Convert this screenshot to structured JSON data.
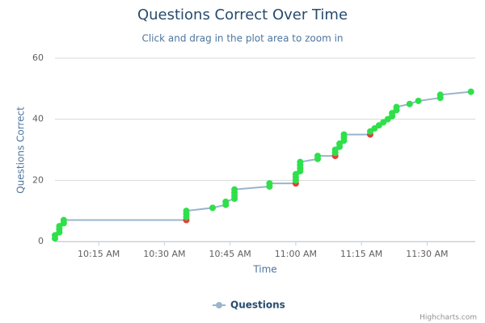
{
  "chart_data": {
    "type": "line",
    "title": "Questions Correct Over Time",
    "subtitle": "Click and drag in the plot area to zoom in",
    "x_label": "Time",
    "y_label": "Questions Correct",
    "x": [
      "10:05 AM",
      "10:05 AM",
      "10:06 AM",
      "10:06 AM",
      "10:06 AM",
      "10:07 AM",
      "10:07 AM",
      "10:35 AM",
      "10:35 AM",
      "10:35 AM",
      "10:35 AM",
      "10:41 AM",
      "10:44 AM",
      "10:44 AM",
      "10:46 AM",
      "10:46 AM",
      "10:46 AM",
      "10:46 AM",
      "10:54 AM",
      "10:54 AM",
      "11:00 AM",
      "11:00 AM",
      "11:00 AM",
      "11:00 AM",
      "11:01 AM",
      "11:01 AM",
      "11:01 AM",
      "11:01 AM",
      "11:05 AM",
      "11:05 AM",
      "11:09 AM",
      "11:09 AM",
      "11:09 AM",
      "11:10 AM",
      "11:10 AM",
      "11:11 AM",
      "11:11 AM",
      "11:11 AM",
      "11:17 AM",
      "11:17 AM",
      "11:18 AM",
      "11:19 AM",
      "11:20 AM",
      "11:21 AM",
      "11:22 AM",
      "11:22 AM",
      "11:23 AM",
      "11:23 AM",
      "11:26 AM",
      "11:28 AM",
      "11:33 AM",
      "11:33 AM",
      "11:40 AM"
    ],
    "series": [
      {
        "name": "Questions",
        "color": "#9ab4cc",
        "values": [
          1,
          2,
          3,
          4,
          5,
          6,
          7,
          7,
          8,
          9,
          10,
          11,
          12,
          13,
          14,
          15,
          16,
          17,
          18,
          19,
          19,
          20,
          21,
          22,
          23,
          24,
          25,
          26,
          27,
          28,
          28,
          29,
          30,
          31,
          32,
          33,
          34,
          35,
          35,
          36,
          37,
          38,
          39,
          40,
          41,
          42,
          43,
          44,
          45,
          46,
          47,
          48,
          49
        ],
        "marker_colors": [
          "#2ee04a",
          "#2ee04a",
          "#2ee04a",
          "#2ee04a",
          "#2ee04a",
          "#2ee04a",
          "#2ee04a",
          "#e0413a",
          "#2ee04a",
          "#2ee04a",
          "#2ee04a",
          "#2ee04a",
          "#2ee04a",
          "#2ee04a",
          "#2ee04a",
          "#2ee04a",
          "#2ee04a",
          "#2ee04a",
          "#2ee04a",
          "#2ee04a",
          "#e0413a",
          "#2ee04a",
          "#2ee04a",
          "#2ee04a",
          "#2ee04a",
          "#2ee04a",
          "#2ee04a",
          "#2ee04a",
          "#2ee04a",
          "#2ee04a",
          "#e0413a",
          "#2ee04a",
          "#2ee04a",
          "#2ee04a",
          "#2ee04a",
          "#2ee04a",
          "#2ee04a",
          "#2ee04a",
          "#e0413a",
          "#2ee04a",
          "#2ee04a",
          "#2ee04a",
          "#2ee04a",
          "#2ee04a",
          "#2ee04a",
          "#2ee04a",
          "#2ee04a",
          "#2ee04a",
          "#2ee04a",
          "#2ee04a",
          "#2ee04a",
          "#2ee04a",
          "#2ee04a"
        ]
      }
    ],
    "xlim": [
      "10:05 AM",
      "11:41 AM"
    ],
    "xticks": [
      "10:15 AM",
      "10:30 AM",
      "10:45 AM",
      "11:00 AM",
      "11:15 AM",
      "11:30 AM"
    ],
    "ylim": [
      0,
      60
    ],
    "yticks": [
      0,
      20,
      40,
      60
    ],
    "grid": true,
    "legend": "bottom",
    "credits": "Highcharts.com"
  }
}
